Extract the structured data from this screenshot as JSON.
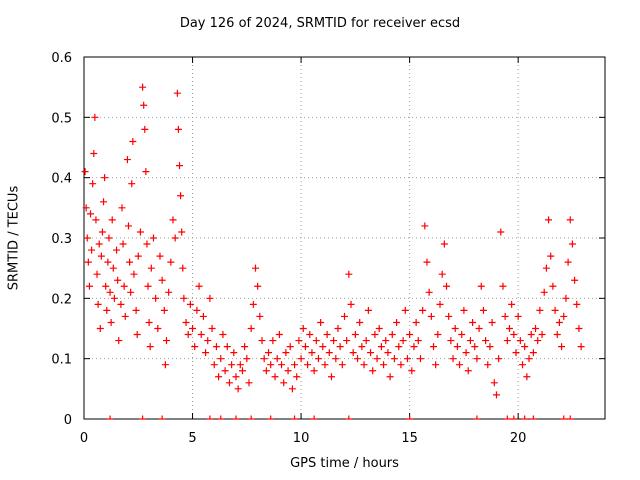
{
  "chart_data": {
    "type": "scatter",
    "title": "Day 126 of 2024, SRMTID for receiver ecsd",
    "xlabel": "GPS time / hours",
    "ylabel": "SRMTID / TECUs",
    "xlim": [
      0,
      24
    ],
    "ylim": [
      0,
      0.6
    ],
    "xticks": [
      0,
      5,
      10,
      15,
      20
    ],
    "yticks": [
      0,
      0.1,
      0.2,
      0.3,
      0.4,
      0.5,
      0.6
    ],
    "grid": true,
    "marker": "+",
    "color": "#ff0000",
    "series": [
      {
        "name": "SRMTID",
        "points": [
          [
            0.05,
            0.41
          ],
          [
            0.1,
            0.35
          ],
          [
            0.15,
            0.3
          ],
          [
            0.2,
            0.26
          ],
          [
            0.25,
            0.22
          ],
          [
            0.3,
            0.34
          ],
          [
            0.35,
            0.28
          ],
          [
            0.4,
            0.39
          ],
          [
            0.45,
            0.44
          ],
          [
            0.5,
            0.5
          ],
          [
            0.55,
            0.33
          ],
          [
            0.6,
            0.24
          ],
          [
            0.65,
            0.19
          ],
          [
            0.7,
            0.29
          ],
          [
            0.75,
            0.15
          ],
          [
            0.8,
            0.27
          ],
          [
            0.85,
            0.31
          ],
          [
            0.9,
            0.36
          ],
          [
            0.95,
            0.4
          ],
          [
            1.0,
            0.22
          ],
          [
            1.05,
            0.18
          ],
          [
            1.1,
            0.26
          ],
          [
            1.15,
            0.3
          ],
          [
            1.2,
            0.21
          ],
          [
            1.25,
            0.16
          ],
          [
            1.3,
            0.33
          ],
          [
            1.35,
            0.25
          ],
          [
            1.4,
            0.2
          ],
          [
            1.5,
            0.28
          ],
          [
            1.55,
            0.23
          ],
          [
            1.6,
            0.13
          ],
          [
            1.7,
            0.19
          ],
          [
            1.75,
            0.35
          ],
          [
            1.8,
            0.29
          ],
          [
            1.85,
            0.22
          ],
          [
            1.9,
            0.17
          ],
          [
            2.0,
            0.43
          ],
          [
            2.05,
            0.32
          ],
          [
            2.1,
            0.26
          ],
          [
            2.15,
            0.21
          ],
          [
            2.2,
            0.39
          ],
          [
            2.25,
            0.46
          ],
          [
            2.3,
            0.24
          ],
          [
            2.4,
            0.18
          ],
          [
            2.45,
            0.14
          ],
          [
            2.5,
            0.27
          ],
          [
            2.6,
            0.31
          ],
          [
            2.7,
            0.55
          ],
          [
            2.75,
            0.52
          ],
          [
            2.8,
            0.48
          ],
          [
            2.85,
            0.41
          ],
          [
            2.9,
            0.29
          ],
          [
            2.95,
            0.22
          ],
          [
            3.0,
            0.16
          ],
          [
            3.05,
            0.12
          ],
          [
            3.1,
            0.25
          ],
          [
            3.2,
            0.3
          ],
          [
            3.3,
            0.2
          ],
          [
            3.4,
            0.15
          ],
          [
            3.5,
            0.27
          ],
          [
            3.6,
            0.23
          ],
          [
            3.7,
            0.18
          ],
          [
            3.75,
            0.09
          ],
          [
            3.8,
            0.13
          ],
          [
            3.9,
            0.21
          ],
          [
            4.0,
            0.26
          ],
          [
            4.1,
            0.33
          ],
          [
            4.2,
            0.3
          ],
          [
            4.3,
            0.54
          ],
          [
            4.35,
            0.48
          ],
          [
            4.4,
            0.42
          ],
          [
            4.45,
            0.37
          ],
          [
            4.5,
            0.31
          ],
          [
            4.55,
            0.25
          ],
          [
            4.6,
            0.2
          ],
          [
            4.7,
            0.16
          ],
          [
            4.8,
            0.14
          ],
          [
            4.9,
            0.19
          ],
          [
            5.0,
            0.15
          ],
          [
            5.1,
            0.12
          ],
          [
            5.2,
            0.18
          ],
          [
            5.3,
            0.22
          ],
          [
            5.4,
            0.14
          ],
          [
            5.5,
            0.17
          ],
          [
            5.6,
            0.11
          ],
          [
            5.7,
            0.13
          ],
          [
            5.8,
            0.2
          ],
          [
            5.9,
            0.15
          ],
          [
            6.0,
            0.09
          ],
          [
            6.1,
            0.12
          ],
          [
            6.2,
            0.07
          ],
          [
            6.3,
            0.1
          ],
          [
            6.4,
            0.14
          ],
          [
            6.5,
            0.08
          ],
          [
            6.6,
            0.12
          ],
          [
            6.7,
            0.06
          ],
          [
            6.8,
            0.09
          ],
          [
            6.9,
            0.11
          ],
          [
            7.0,
            0.07
          ],
          [
            7.1,
            0.05
          ],
          [
            7.2,
            0.09
          ],
          [
            7.3,
            0.08
          ],
          [
            7.4,
            0.12
          ],
          [
            7.5,
            0.1
          ],
          [
            7.6,
            0.06
          ],
          [
            7.7,
            0.15
          ],
          [
            7.8,
            0.19
          ],
          [
            7.9,
            0.25
          ],
          [
            8.0,
            0.22
          ],
          [
            8.1,
            0.17
          ],
          [
            8.2,
            0.13
          ],
          [
            8.3,
            0.1
          ],
          [
            8.4,
            0.08
          ],
          [
            8.5,
            0.11
          ],
          [
            8.6,
            0.09
          ],
          [
            8.7,
            0.13
          ],
          [
            8.8,
            0.07
          ],
          [
            8.9,
            0.1
          ],
          [
            9.0,
            0.14
          ],
          [
            9.1,
            0.09
          ],
          [
            9.2,
            0.06
          ],
          [
            9.3,
            0.11
          ],
          [
            9.4,
            0.08
          ],
          [
            9.5,
            0.12
          ],
          [
            9.6,
            0.05
          ],
          [
            9.7,
            0.09
          ],
          [
            9.8,
            0.07
          ],
          [
            9.9,
            0.13
          ],
          [
            10.0,
            0.1
          ],
          [
            10.1,
            0.15
          ],
          [
            10.2,
            0.12
          ],
          [
            10.3,
            0.09
          ],
          [
            10.4,
            0.14
          ],
          [
            10.5,
            0.11
          ],
          [
            10.6,
            0.08
          ],
          [
            10.7,
            0.13
          ],
          [
            10.8,
            0.1
          ],
          [
            10.9,
            0.16
          ],
          [
            11.0,
            0.12
          ],
          [
            11.1,
            0.09
          ],
          [
            11.2,
            0.14
          ],
          [
            11.3,
            0.11
          ],
          [
            11.4,
            0.07
          ],
          [
            11.5,
            0.13
          ],
          [
            11.6,
            0.1
          ],
          [
            11.7,
            0.15
          ],
          [
            11.8,
            0.12
          ],
          [
            11.9,
            0.09
          ],
          [
            12.0,
            0.17
          ],
          [
            12.1,
            0.13
          ],
          [
            12.2,
            0.24
          ],
          [
            12.3,
            0.19
          ],
          [
            12.4,
            0.11
          ],
          [
            12.5,
            0.14
          ],
          [
            12.6,
            0.1
          ],
          [
            12.7,
            0.16
          ],
          [
            12.8,
            0.12
          ],
          [
            12.9,
            0.09
          ],
          [
            13.0,
            0.13
          ],
          [
            13.1,
            0.18
          ],
          [
            13.2,
            0.11
          ],
          [
            13.3,
            0.08
          ],
          [
            13.4,
            0.14
          ],
          [
            13.5,
            0.1
          ],
          [
            13.6,
            0.15
          ],
          [
            13.7,
            0.12
          ],
          [
            13.8,
            0.09
          ],
          [
            13.9,
            0.13
          ],
          [
            14.0,
            0.11
          ],
          [
            14.1,
            0.07
          ],
          [
            14.2,
            0.14
          ],
          [
            14.3,
            0.1
          ],
          [
            14.4,
            0.16
          ],
          [
            14.5,
            0.12
          ],
          [
            14.6,
            0.09
          ],
          [
            14.7,
            0.13
          ],
          [
            14.8,
            0.18
          ],
          [
            14.9,
            0.1
          ],
          [
            15.0,
            0.14
          ],
          [
            15.1,
            0.08
          ],
          [
            15.2,
            0.12
          ],
          [
            15.3,
            0.16
          ],
          [
            15.4,
            0.13
          ],
          [
            15.5,
            0.1
          ],
          [
            15.6,
            0.18
          ],
          [
            15.7,
            0.32
          ],
          [
            15.8,
            0.26
          ],
          [
            15.9,
            0.21
          ],
          [
            16.0,
            0.17
          ],
          [
            16.1,
            0.12
          ],
          [
            16.2,
            0.09
          ],
          [
            16.3,
            0.14
          ],
          [
            16.4,
            0.19
          ],
          [
            16.5,
            0.24
          ],
          [
            16.6,
            0.29
          ],
          [
            16.7,
            0.22
          ],
          [
            16.8,
            0.17
          ],
          [
            16.9,
            0.13
          ],
          [
            17.0,
            0.1
          ],
          [
            17.1,
            0.15
          ],
          [
            17.2,
            0.12
          ],
          [
            17.3,
            0.09
          ],
          [
            17.4,
            0.14
          ],
          [
            17.5,
            0.18
          ],
          [
            17.6,
            0.11
          ],
          [
            17.7,
            0.08
          ],
          [
            17.8,
            0.13
          ],
          [
            17.9,
            0.16
          ],
          [
            18.0,
            0.12
          ],
          [
            18.1,
            0.1
          ],
          [
            18.2,
            0.15
          ],
          [
            18.3,
            0.22
          ],
          [
            18.4,
            0.18
          ],
          [
            18.5,
            0.13
          ],
          [
            18.6,
            0.09
          ],
          [
            18.7,
            0.12
          ],
          [
            18.8,
            0.16
          ],
          [
            18.9,
            0.06
          ],
          [
            19.0,
            0.04
          ],
          [
            19.1,
            0.1
          ],
          [
            19.2,
            0.31
          ],
          [
            19.3,
            0.22
          ],
          [
            19.4,
            0.17
          ],
          [
            19.5,
            0.13
          ],
          [
            19.6,
            0.15
          ],
          [
            19.7,
            0.19
          ],
          [
            19.8,
            0.14
          ],
          [
            19.9,
            0.11
          ],
          [
            20.0,
            0.17
          ],
          [
            20.1,
            0.13
          ],
          [
            20.2,
            0.09
          ],
          [
            20.3,
            0.12
          ],
          [
            20.4,
            0.07
          ],
          [
            20.5,
            0.1
          ],
          [
            20.6,
            0.14
          ],
          [
            20.7,
            0.11
          ],
          [
            20.8,
            0.15
          ],
          [
            20.9,
            0.13
          ],
          [
            21.0,
            0.18
          ],
          [
            21.1,
            0.14
          ],
          [
            21.2,
            0.21
          ],
          [
            21.3,
            0.25
          ],
          [
            21.4,
            0.33
          ],
          [
            21.5,
            0.27
          ],
          [
            21.6,
            0.22
          ],
          [
            21.7,
            0.18
          ],
          [
            21.8,
            0.14
          ],
          [
            21.9,
            0.16
          ],
          [
            22.0,
            0.12
          ],
          [
            22.1,
            0.17
          ],
          [
            22.2,
            0.2
          ],
          [
            22.3,
            0.26
          ],
          [
            22.4,
            0.33
          ],
          [
            22.5,
            0.29
          ],
          [
            22.6,
            0.23
          ],
          [
            22.7,
            0.19
          ],
          [
            22.8,
            0.15
          ],
          [
            22.9,
            0.12
          ]
        ]
      }
    ],
    "zero_markers_x": [
      1.2,
      2.7,
      3.6,
      5.8,
      6.3,
      7.0,
      7.7,
      8.6,
      9.7,
      10.6,
      12.2,
      15.0,
      18.1,
      19.5,
      19.8,
      20.3,
      20.7,
      22.1,
      22.4
    ]
  }
}
